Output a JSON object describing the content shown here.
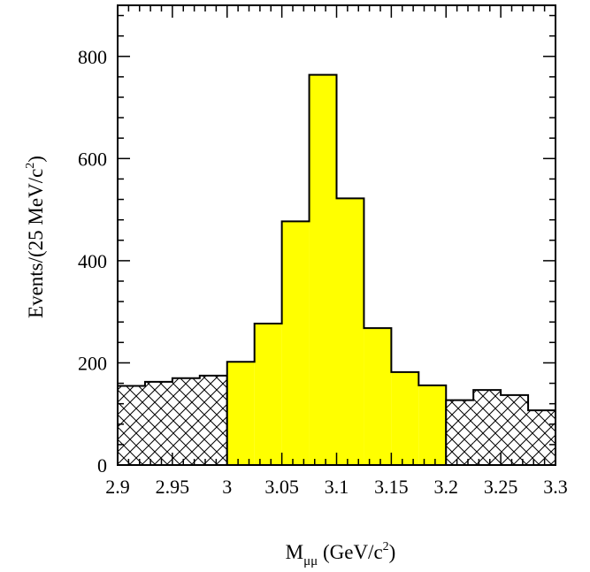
{
  "chart_data": {
    "type": "histogram",
    "title": "",
    "xlabel": {
      "main": "M",
      "sub": "μμ",
      "rest": " (GeV/c",
      "sup": "2",
      "end": ")"
    },
    "ylabel": {
      "main": "Events/(25 MeV/c",
      "sup": "2",
      "end": ")"
    },
    "xlim": [
      2.9,
      3.3
    ],
    "ylim": [
      0,
      900
    ],
    "x_ticks": [
      2.9,
      2.95,
      3,
      3.05,
      3.1,
      3.15,
      3.2,
      3.25,
      3.3
    ],
    "x_tick_labels": [
      "2.9",
      "2.95",
      "3",
      "3.05",
      "3.1",
      "3.15",
      "3.2",
      "3.25",
      "3.3"
    ],
    "y_ticks": [
      0,
      200,
      400,
      600,
      800
    ],
    "y_tick_labels": [
      "0",
      "200",
      "400",
      "600",
      "800"
    ],
    "bin_width": 0.025,
    "series": [
      {
        "style": "hatched",
        "color": "#000000",
        "bins": [
          {
            "x0": 2.9,
            "x1": 2.925,
            "y": 155
          },
          {
            "x0": 2.925,
            "x1": 2.95,
            "y": 163
          },
          {
            "x0": 2.95,
            "x1": 2.975,
            "y": 170
          },
          {
            "x0": 2.975,
            "x1": 3.0,
            "y": 175
          }
        ]
      },
      {
        "style": "filled",
        "color": "#ffff00",
        "bins": [
          {
            "x0": 3.0,
            "x1": 3.025,
            "y": 202
          },
          {
            "x0": 3.025,
            "x1": 3.05,
            "y": 277
          },
          {
            "x0": 3.05,
            "x1": 3.075,
            "y": 477
          },
          {
            "x0": 3.075,
            "x1": 3.1,
            "y": 764
          },
          {
            "x0": 3.1,
            "x1": 3.125,
            "y": 522
          },
          {
            "x0": 3.125,
            "x1": 3.15,
            "y": 268
          },
          {
            "x0": 3.15,
            "x1": 3.175,
            "y": 182
          },
          {
            "x0": 3.175,
            "x1": 3.2,
            "y": 156
          }
        ]
      },
      {
        "style": "hatched",
        "color": "#000000",
        "bins": [
          {
            "x0": 3.2,
            "x1": 3.225,
            "y": 127
          },
          {
            "x0": 3.225,
            "x1": 3.25,
            "y": 147
          },
          {
            "x0": 3.25,
            "x1": 3.275,
            "y": 137
          },
          {
            "x0": 3.275,
            "x1": 3.3,
            "y": 107
          }
        ]
      }
    ],
    "grid": false,
    "legend": "none"
  }
}
